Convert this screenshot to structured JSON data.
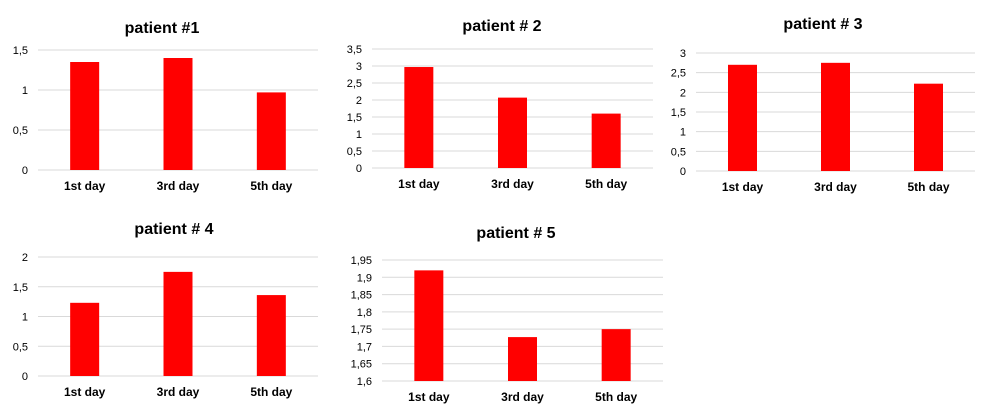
{
  "chart_data": [
    {
      "type": "bar",
      "title": "patient #1",
      "categories": [
        "1st day",
        "3rd day",
        "5th day"
      ],
      "values": [
        1.35,
        1.4,
        0.97
      ],
      "ylim": [
        0,
        1.5
      ],
      "ytick_labels": [
        "0",
        "0,5",
        "1",
        "1,5"
      ],
      "grid": true,
      "color": "#ff0000"
    },
    {
      "type": "bar",
      "title": "patient # 2",
      "categories": [
        "1st day",
        "3rd day",
        "5th day"
      ],
      "values": [
        2.97,
        2.07,
        1.6
      ],
      "ylim": [
        0,
        3.5
      ],
      "ytick_labels": [
        "0",
        "0,5",
        "1",
        "1,5",
        "2",
        "2,5",
        "3",
        "3,5"
      ],
      "grid": true,
      "color": "#ff0000"
    },
    {
      "type": "bar",
      "title": "patient # 3",
      "categories": [
        "1st day",
        "3rd day",
        "5th day"
      ],
      "values": [
        2.7,
        2.75,
        2.22
      ],
      "ylim": [
        0,
        3
      ],
      "ytick_labels": [
        "0",
        "0,5",
        "1",
        "1,5",
        "2",
        "2,5",
        "3"
      ],
      "grid": true,
      "color": "#ff0000"
    },
    {
      "type": "bar",
      "title": "patient # 4",
      "categories": [
        "1st day",
        "3rd day",
        "5th day"
      ],
      "values": [
        1.23,
        1.75,
        1.36
      ],
      "ylim": [
        0,
        2
      ],
      "ytick_labels": [
        "0",
        "0,5",
        "1",
        "1,5",
        "2"
      ],
      "grid": true,
      "color": "#ff0000"
    },
    {
      "type": "bar",
      "title": "patient # 5",
      "categories": [
        "1st day",
        "3rd day",
        "5th day"
      ],
      "values": [
        1.92,
        1.727,
        1.75
      ],
      "ylim": [
        1.6,
        1.95
      ],
      "ytick_labels": [
        "1,6",
        "1,65",
        "1,7",
        "1,75",
        "1,8",
        "1,85",
        "1,9",
        "1,95"
      ],
      "grid": true,
      "color": "#ff0000"
    }
  ]
}
